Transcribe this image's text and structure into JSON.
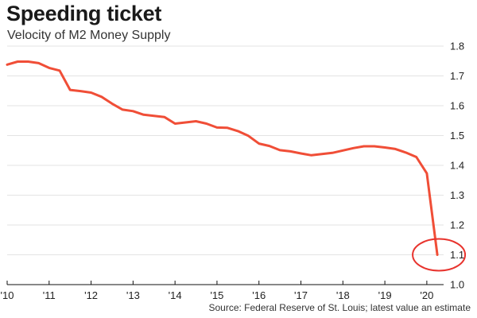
{
  "chart_data": {
    "type": "line",
    "title": "Speeding ticket",
    "subtitle": "Velocity of M2 Money Supply",
    "source": "Source: Federal Reserve of St. Louis; latest value an estimate",
    "xlabel": "",
    "ylabel": "",
    "xlim": [
      2010,
      2020.4
    ],
    "ylim": [
      1.0,
      1.8
    ],
    "x_ticks": [
      2010,
      2011,
      2012,
      2013,
      2014,
      2015,
      2016,
      2017,
      2018,
      2019,
      2020
    ],
    "x_tick_labels": [
      "'10",
      "'11",
      "'12",
      "'13",
      "'14",
      "'15",
      "'16",
      "'17",
      "'18",
      "'19",
      "'20"
    ],
    "y_ticks": [
      1.0,
      1.1,
      1.2,
      1.3,
      1.4,
      1.5,
      1.6,
      1.7,
      1.8
    ],
    "y_tick_labels": [
      "1.0",
      "1.1",
      "1.2",
      "1.3",
      "1.4",
      "1.5",
      "1.6",
      "1.7",
      "1.8"
    ],
    "grid": "horizontal",
    "line_color": "#f04e37",
    "axis_color": "#111111",
    "grid_color": "#e3e3e3",
    "annotation": {
      "type": "circle",
      "target": "last point",
      "color": "#e8342e"
    },
    "series": [
      {
        "x": [
          2010.0,
          2010.25,
          2010.5,
          2010.75,
          2011.0,
          2011.25,
          2011.5,
          2011.75,
          2012.0,
          2012.25,
          2012.5,
          2012.75,
          2013.0,
          2013.25,
          2013.5,
          2013.75,
          2014.0,
          2014.25,
          2014.5,
          2014.75,
          2015.0,
          2015.25,
          2015.5,
          2015.75,
          2016.0,
          2016.25,
          2016.5,
          2016.75,
          2017.0,
          2017.25,
          2017.5,
          2017.75,
          2018.0,
          2018.25,
          2018.5,
          2018.75,
          2019.0,
          2019.25,
          2019.5,
          2019.75,
          2020.0,
          2020.25
        ],
        "values": [
          1.738,
          1.748,
          1.748,
          1.743,
          1.727,
          1.718,
          1.653,
          1.649,
          1.644,
          1.63,
          1.607,
          1.587,
          1.582,
          1.57,
          1.566,
          1.562,
          1.54,
          1.544,
          1.548,
          1.54,
          1.527,
          1.526,
          1.515,
          1.499,
          1.473,
          1.465,
          1.451,
          1.447,
          1.44,
          1.434,
          1.438,
          1.442,
          1.45,
          1.458,
          1.464,
          1.464,
          1.46,
          1.455,
          1.443,
          1.428,
          1.373,
          1.1
        ]
      }
    ]
  }
}
